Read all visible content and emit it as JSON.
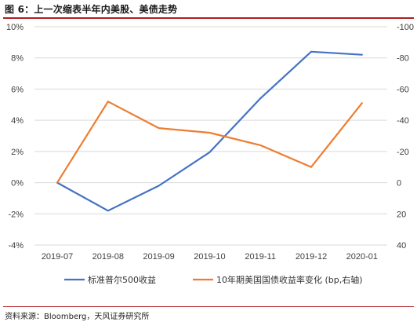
{
  "figure": {
    "title": "图 6：上一次缩表半年内美股、美债走势",
    "source": "资料来源：Bloomberg，天风证券研究所"
  },
  "colors": {
    "blue": "#4472c4",
    "orange": "#ed7d31",
    "grid": "#d9d9d9",
    "accent": "#b01e23"
  },
  "chart_data": {
    "type": "line",
    "categories": [
      "2019-07",
      "2019-08",
      "2019-09",
      "2019-10",
      "2019-11",
      "2019-12",
      "2020-01"
    ],
    "left_axis": {
      "ylim": [
        -4,
        10
      ],
      "ticks": [
        -4,
        -2,
        0,
        2,
        4,
        6,
        8,
        10
      ],
      "tick_labels": [
        "-4%",
        "-2%",
        "0%",
        "2%",
        "4%",
        "6%",
        "8%",
        "10%"
      ]
    },
    "right_axis": {
      "ylim": [
        40,
        -100
      ],
      "inverted": true,
      "ticks": [
        40,
        20,
        0,
        -20,
        -40,
        -60,
        -80,
        -100
      ],
      "tick_labels": [
        "40",
        "20",
        "0",
        "-20",
        "-40",
        "-60",
        "-80",
        "-100"
      ]
    },
    "grid": "horizontal",
    "legend_position": "bottom",
    "series": [
      {
        "name": "标准普尔500收益",
        "axis": "left",
        "color": "#4472c4",
        "values": [
          0.0,
          -1.8,
          -0.2,
          1.95,
          5.4,
          8.4,
          8.2
        ]
      },
      {
        "name": "10年期美国国债收益率变化 (bp,右轴)",
        "axis": "right",
        "color": "#ed7d31",
        "values": [
          0,
          -52,
          -35,
          -32,
          -24,
          -10,
          -51
        ]
      }
    ]
  }
}
